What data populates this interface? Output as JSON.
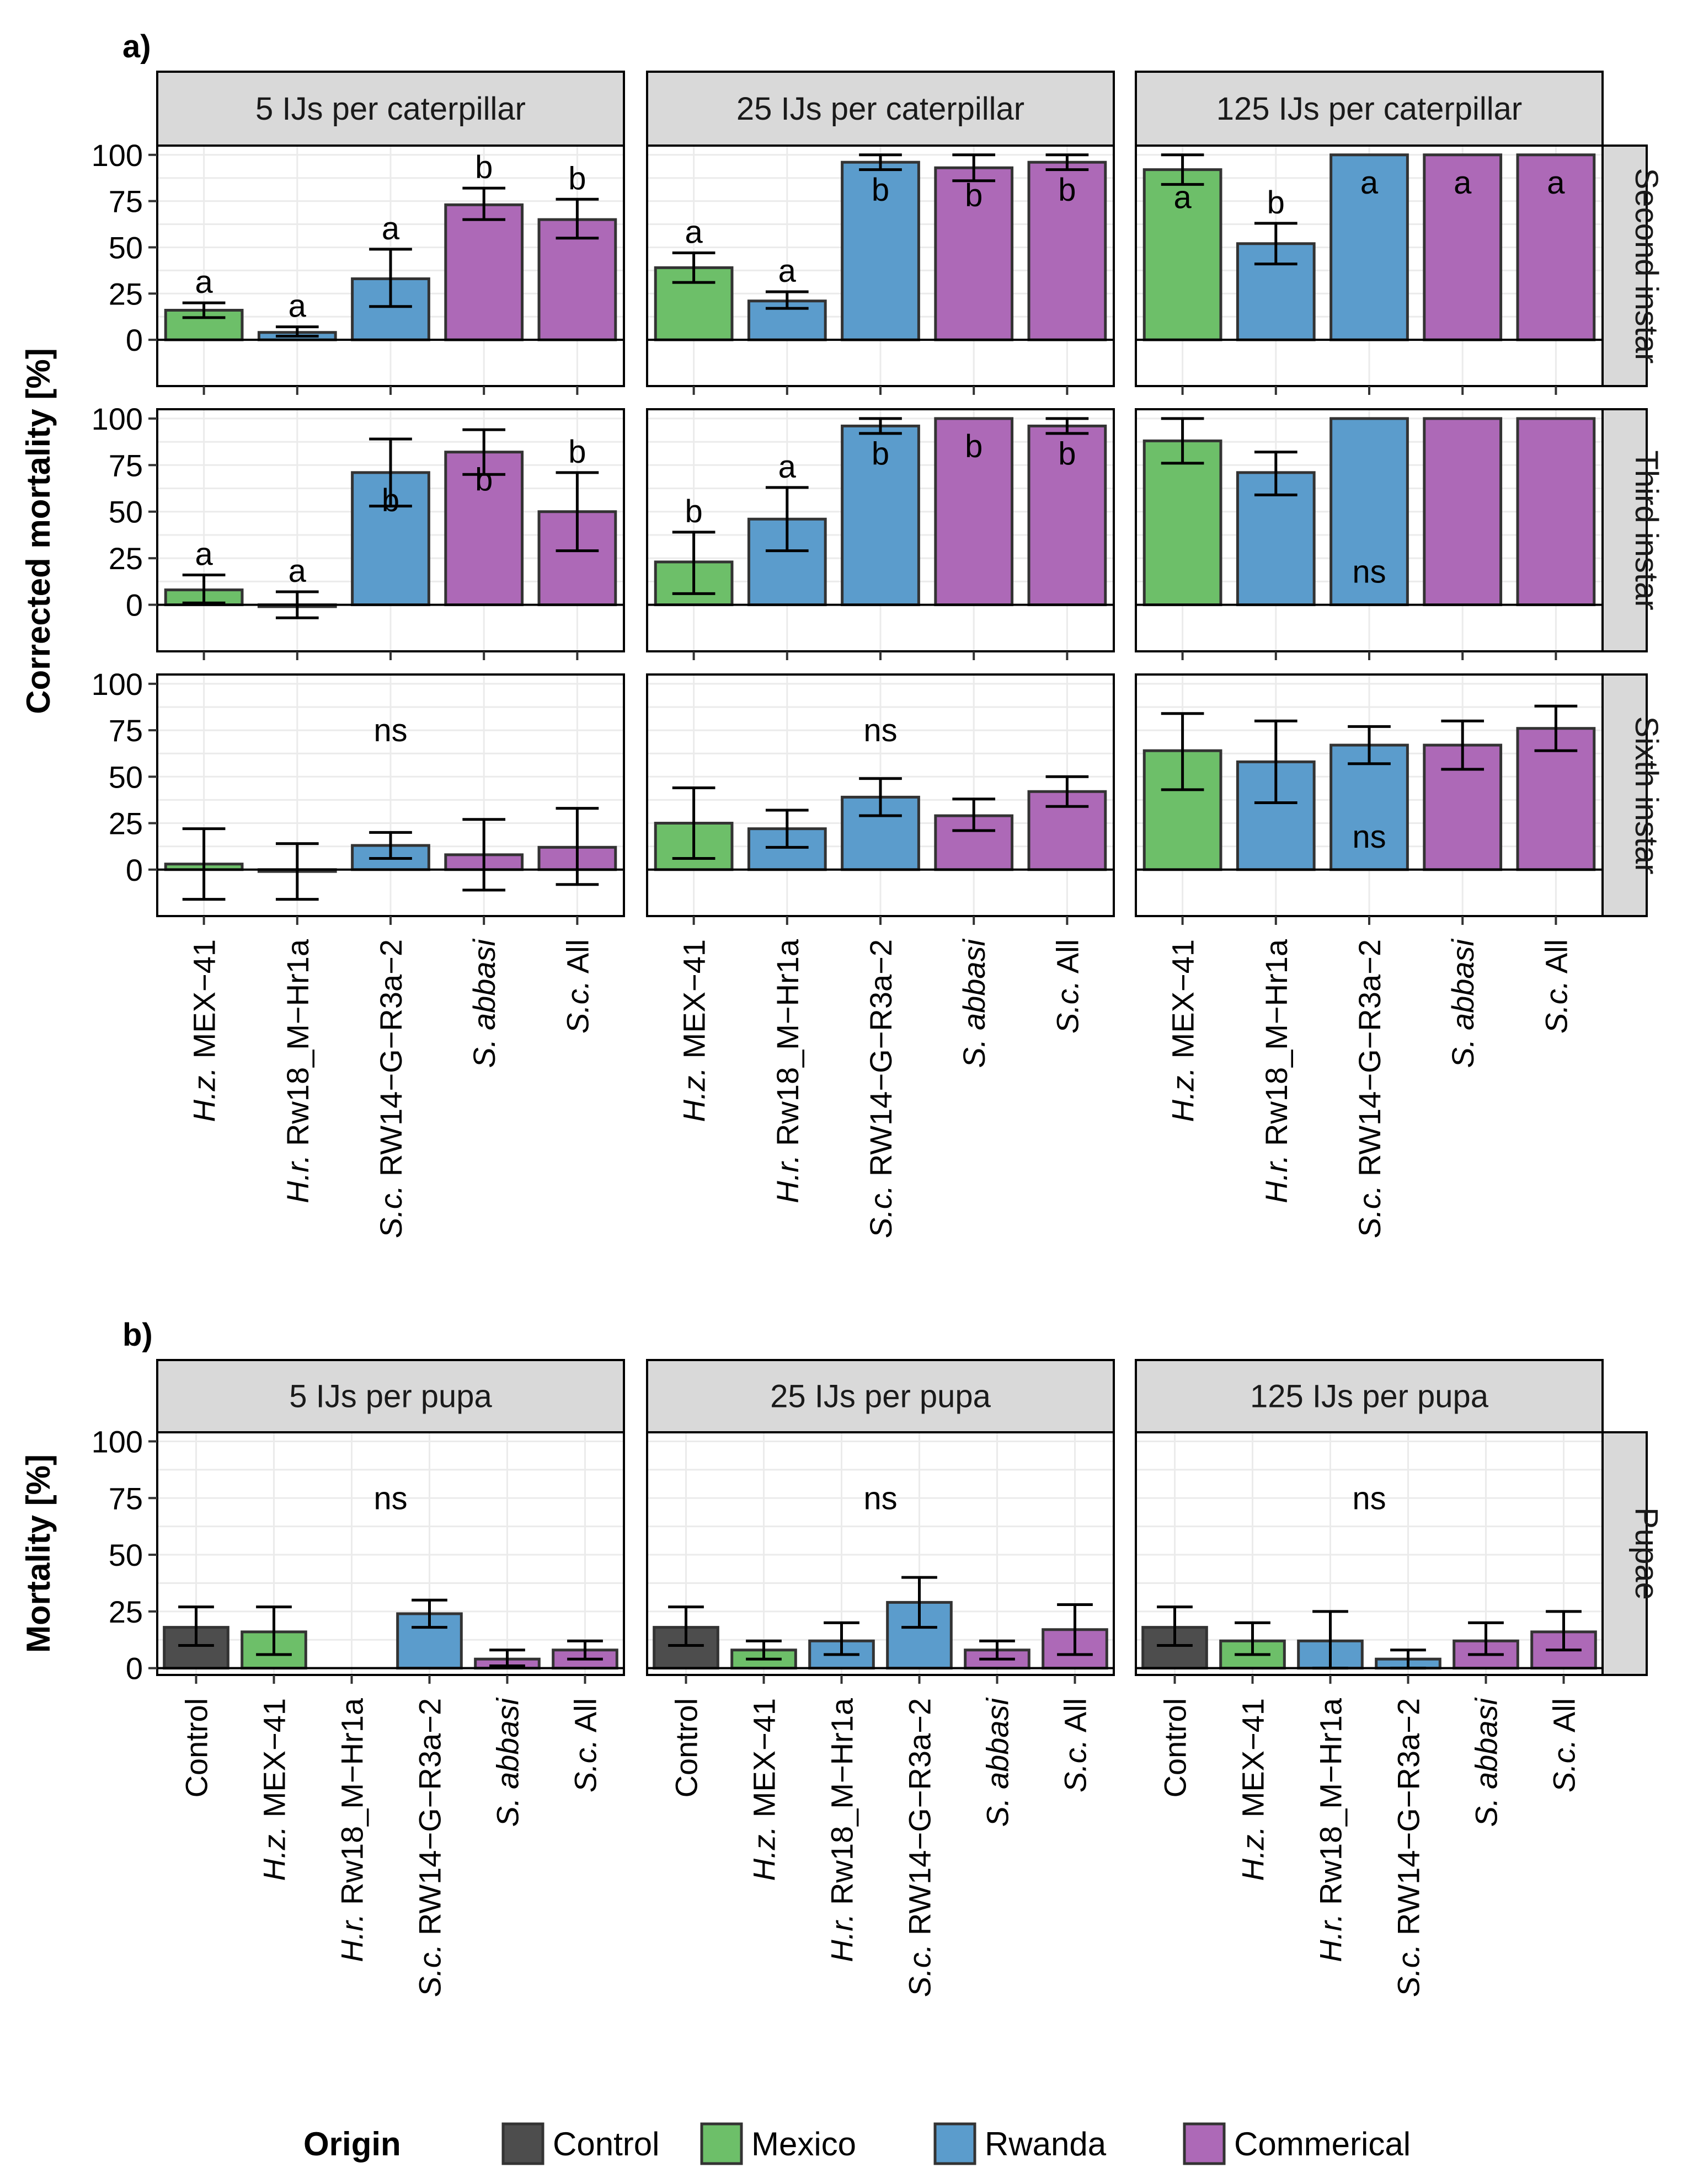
{
  "colors": {
    "Control": "#4d4d4d",
    "Mexico": "#6dbf69",
    "Rwanda": "#5b9ccc",
    "Commerical": "#ad69b7"
  },
  "chart_data": [
    {
      "type": "bar",
      "tag": "a)",
      "ylabel": "Corrected mortality [%]",
      "ylim": [
        -25,
        105
      ],
      "yticks": [
        0,
        25,
        50,
        75,
        100
      ],
      "grid": true,
      "categories": [
        {
          "prefix": "H.z.",
          "rest": " MEX−41",
          "origin": "Mexico"
        },
        {
          "prefix": "H.r.",
          "rest": " Rw18_M−Hr1a",
          "origin": "Rwanda"
        },
        {
          "prefix": "S.c.",
          "rest": " RW14−G−R3a−2",
          "origin": "Rwanda"
        },
        {
          "prefix": "S. abbasi",
          "rest": "",
          "origin": "Commerical"
        },
        {
          "prefix": "S.c.",
          "rest": " All",
          "origin": "Commerical"
        }
      ],
      "columns": [
        "5 IJs per caterpillar",
        "25 IJs per caterpillar",
        "125 IJs per caterpillar"
      ],
      "rows": [
        "Second instar",
        "Third instar",
        "Sixth instar"
      ],
      "panels": [
        [
          {
            "values": [
              16,
              4,
              33,
              73,
              65
            ],
            "err_low": [
              12,
              2,
              18,
              65,
              55
            ],
            "err_high": [
              20,
              7,
              49,
              82,
              76
            ],
            "letters": [
              "a",
              "a",
              "a",
              "b",
              "b"
            ],
            "letter_pos": [
              "above",
              "above",
              "above",
              "above",
              "above"
            ],
            "ns": ""
          },
          {
            "values": [
              39,
              21,
              96,
              93,
              96
            ],
            "err_low": [
              31,
              17,
              92,
              86,
              92
            ],
            "err_high": [
              47,
              26,
              100,
              100,
              100
            ],
            "letters": [
              "a",
              "a",
              "b",
              "b",
              "b"
            ],
            "letter_pos": [
              "above",
              "above",
              "inside",
              "inside",
              "inside"
            ],
            "ns": ""
          },
          {
            "values": [
              92,
              52,
              100,
              100,
              100
            ],
            "err_low": [
              84,
              41,
              100,
              100,
              100
            ],
            "err_high": [
              100,
              63,
              100,
              100,
              100
            ],
            "letters": [
              "a",
              "b",
              "a",
              "a",
              "a"
            ],
            "letter_pos": [
              "inside",
              "above",
              "inside",
              "inside",
              "inside"
            ],
            "ns": ""
          }
        ],
        [
          {
            "values": [
              8,
              -1,
              71,
              82,
              50
            ],
            "err_low": [
              1,
              -7,
              53,
              70,
              29
            ],
            "err_high": [
              16,
              7,
              89,
              94,
              71
            ],
            "letters": [
              "a",
              "a",
              "b",
              "b",
              "b"
            ],
            "letter_pos": [
              "above",
              "above",
              "inside",
              "inside",
              "above"
            ],
            "ns": ""
          },
          {
            "values": [
              23,
              46,
              96,
              100,
              96
            ],
            "err_low": [
              6,
              29,
              92,
              100,
              92
            ],
            "err_high": [
              39,
              63,
              100,
              100,
              100
            ],
            "letters": [
              "b",
              "a",
              "b",
              "b",
              "b"
            ],
            "letter_pos": [
              "above",
              "above",
              "inside",
              "inside",
              "inside"
            ],
            "ns": ""
          },
          {
            "values": [
              88,
              71,
              100,
              100,
              100
            ],
            "err_low": [
              76,
              59,
              100,
              100,
              100
            ],
            "err_high": [
              100,
              82,
              100,
              100,
              100
            ],
            "letters": [
              "",
              "",
              "",
              "",
              ""
            ],
            "letter_pos": [
              "",
              "",
              "",
              "",
              ""
            ],
            "ns": "ns"
          }
        ],
        [
          {
            "values": [
              3,
              -1,
              13,
              8,
              12
            ],
            "err_low": [
              -16,
              -16,
              6,
              -11,
              -8
            ],
            "err_high": [
              22,
              14,
              20,
              27,
              33
            ],
            "letters": [
              "",
              "",
              "",
              "",
              ""
            ],
            "letter_pos": [
              "",
              "",
              "",
              "",
              ""
            ],
            "ns": "ns"
          },
          {
            "values": [
              25,
              22,
              39,
              29,
              42
            ],
            "err_low": [
              6,
              12,
              29,
              21,
              34
            ],
            "err_high": [
              44,
              32,
              49,
              38,
              50
            ],
            "letters": [
              "",
              "",
              "",
              "",
              ""
            ],
            "letter_pos": [
              "",
              "",
              "",
              "",
              ""
            ],
            "ns": "ns"
          },
          {
            "values": [
              64,
              58,
              67,
              67,
              76
            ],
            "err_low": [
              43,
              36,
              57,
              54,
              64
            ],
            "err_high": [
              84,
              80,
              77,
              80,
              88
            ],
            "letters": [
              "",
              "",
              "",
              "",
              ""
            ],
            "letter_pos": [
              "",
              "",
              "",
              "",
              ""
            ],
            "ns": "ns"
          }
        ]
      ]
    },
    {
      "type": "bar",
      "tag": "b)",
      "ylabel": "Mortality [%]",
      "ylim": [
        -3,
        104
      ],
      "yticks": [
        0,
        25,
        50,
        75,
        100
      ],
      "grid": true,
      "categories": [
        {
          "prefix": "",
          "rest": "Control",
          "origin": "Control"
        },
        {
          "prefix": "H.z.",
          "rest": " MEX−41",
          "origin": "Mexico"
        },
        {
          "prefix": "H.r.",
          "rest": " Rw18_M−Hr1a",
          "origin": "Rwanda"
        },
        {
          "prefix": "S.c.",
          "rest": " RW14−G−R3a−2",
          "origin": "Rwanda"
        },
        {
          "prefix": "S. abbasi",
          "rest": "",
          "origin": "Commerical"
        },
        {
          "prefix": "S.c.",
          "rest": " All",
          "origin": "Commerical"
        }
      ],
      "columns": [
        "5 IJs per pupa",
        "25 IJs per pupa",
        "125 IJs per pupa"
      ],
      "rows": [
        "Pupae"
      ],
      "panels": [
        [
          {
            "values": [
              18,
              16,
              0,
              24,
              4,
              8
            ],
            "err_low": [
              10,
              6,
              0,
              18,
              1,
              4
            ],
            "err_high": [
              27,
              27,
              0,
              30,
              8,
              12
            ],
            "ns": "ns"
          },
          {
            "values": [
              18,
              8,
              12,
              29,
              8,
              17
            ],
            "err_low": [
              10,
              4,
              6,
              18,
              4,
              6
            ],
            "err_high": [
              27,
              12,
              20,
              40,
              12,
              28
            ],
            "ns": "ns"
          },
          {
            "values": [
              18,
              12,
              12,
              4,
              12,
              16
            ],
            "err_low": [
              10,
              6,
              0,
              0,
              6,
              8
            ],
            "err_high": [
              27,
              20,
              25,
              8,
              20,
              25
            ],
            "ns": "ns"
          }
        ]
      ]
    }
  ],
  "legend": {
    "title": "Origin",
    "items": [
      "Control",
      "Mexico",
      "Rwanda",
      "Commerical"
    ]
  }
}
